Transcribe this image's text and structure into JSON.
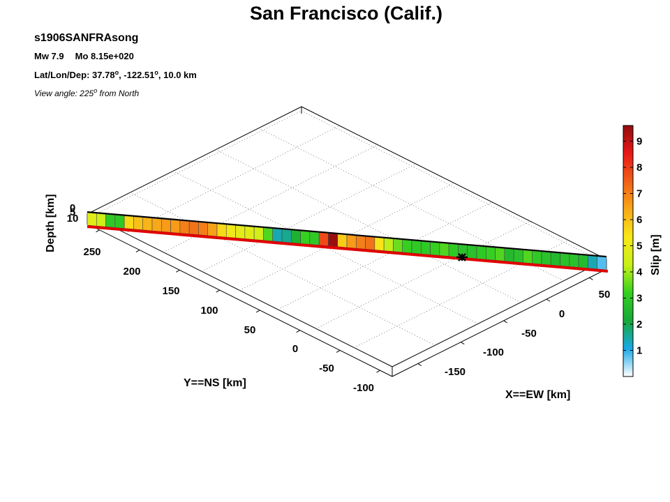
{
  "header": {
    "title": "San Francisco (Calif.)",
    "event_id": "s1906SANFRAsong",
    "mw_label": "Mw 7.9",
    "mo_label": "Mo 8.15e+020",
    "location_prefix": "Lat/Lon/Dep: 37.78",
    "lat_unit": "o",
    "location_mid": ", -122.51",
    "lon_unit": "o",
    "location_suffix": ", 10.0 km",
    "view_prefix": "View angle: 225",
    "view_unit": "o",
    "view_suffix": " from North"
  },
  "chart_data": {
    "type": "heatmap",
    "title": "San Francisco (Calif.)",
    "xlabel": "X==EW [km]",
    "ylabel": "Y==NS [km]",
    "zlabel": "Depth [km]",
    "colorbar_label": "Slip [m]",
    "colormap": [
      "#ffffff",
      "#1aa8e8",
      "#18a838",
      "#34d021",
      "#c8f018",
      "#f8e818",
      "#f8a818",
      "#f06018",
      "#e81818",
      "#900e0e"
    ],
    "clim": [
      0,
      9.6
    ],
    "colorbar_ticks": [
      "1",
      "2",
      "3",
      "4",
      "5",
      "6",
      "7",
      "8",
      "9"
    ],
    "x_ticks": [
      "-150",
      "-100",
      "-50",
      "0",
      "50"
    ],
    "y_ticks": [
      "-100",
      "-50",
      "0",
      "50",
      "100",
      "150",
      "200",
      "250"
    ],
    "z_ticks": [
      "0",
      "5",
      "10"
    ],
    "grid": true,
    "view_angle_deg": 225,
    "hypocenter_marker": true,
    "slip_m": [
      4.8,
      4.4,
      3.0,
      3.0,
      5.6,
      6.0,
      6.2,
      6.4,
      6.6,
      6.6,
      7.0,
      7.2,
      7.0,
      6.5,
      5.6,
      5.2,
      4.9,
      4.8,
      4.5,
      3.4,
      1.4,
      1.6,
      2.4,
      3.2,
      3.0,
      7.8,
      9.5,
      5.8,
      6.6,
      7.0,
      7.2,
      5.4,
      4.2,
      3.6,
      3.2,
      3.0,
      3.0,
      3.2,
      3.4,
      3.0,
      2.8,
      2.8,
      3.0,
      3.2,
      3.4,
      2.6,
      2.8,
      3.4,
      3.0,
      2.8,
      2.6,
      2.8,
      2.8,
      2.6,
      1.4,
      0.8
    ]
  }
}
